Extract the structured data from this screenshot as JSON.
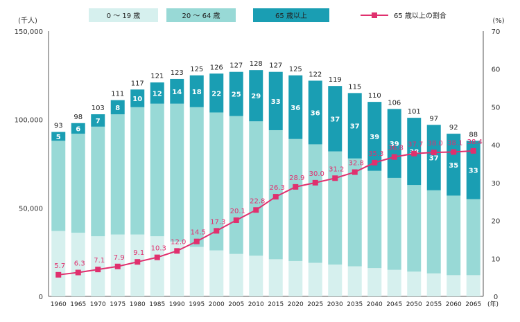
{
  "chart_data": {
    "type": "bar",
    "stacked": true,
    "categories": [
      "1960",
      "1965",
      "1970",
      "1975",
      "1980",
      "1985",
      "1990",
      "1995",
      "2000",
      "2005",
      "2010",
      "2015",
      "2020",
      "2025",
      "2030",
      "2035",
      "2040",
      "2045",
      "2050",
      "2055",
      "2060",
      "2065"
    ],
    "series": [
      {
        "name": "0 〜 19 歳",
        "color": "#d6f0ee",
        "values": [
          37,
          36,
          34,
          35,
          35,
          34,
          31,
          28,
          26,
          24,
          23,
          21,
          20,
          19,
          18,
          17,
          16,
          15,
          14,
          13,
          12,
          12
        ]
      },
      {
        "name": "20 〜 64 歳",
        "color": "#98d9d6",
        "values": [
          51,
          56,
          62,
          68,
          72,
          75,
          78,
          79,
          78,
          78,
          76,
          73,
          69,
          67,
          64,
          61,
          55,
          52,
          49,
          47,
          45,
          43
        ]
      },
      {
        "name": "65 歳以上",
        "color": "#1a9eb3",
        "values": [
          5,
          6,
          7,
          8,
          10,
          12,
          14,
          18,
          22,
          25,
          29,
          33,
          36,
          36,
          37,
          37,
          39,
          39,
          38,
          37,
          35,
          33
        ]
      }
    ],
    "totals": [
      93,
      98,
      103,
      111,
      117,
      121,
      123,
      125,
      126,
      127,
      128,
      127,
      125,
      122,
      119,
      115,
      110,
      106,
      101,
      97,
      92,
      88
    ],
    "line_series": {
      "name": "65 歳以上の割合",
      "color": "#e0306e",
      "values": [
        5.7,
        6.3,
        7.1,
        7.9,
        9.1,
        10.3,
        12.0,
        14.5,
        17.3,
        20.1,
        22.8,
        26.3,
        28.9,
        30.0,
        31.2,
        32.8,
        35.3,
        36.8,
        37.7,
        38.0,
        38.1,
        38.4
      ],
      "labels": [
        "5.7",
        "6.3",
        "7.1",
        "7.9",
        "9.1",
        "10.3",
        "12.0",
        "14.5",
        "17.3",
        "20.1",
        "22.8",
        "26.3",
        "28.9",
        "30.0",
        "31.2",
        "32.8",
        "35.3",
        "36.8",
        "37.7",
        "38.0",
        "38.1",
        "38.4"
      ]
    },
    "y_left": {
      "label": "(千人)",
      "ticks": [
        "150,000",
        "100,000",
        "50,000",
        "0"
      ],
      "range": [
        0,
        150000
      ]
    },
    "y_right": {
      "label": "(%)",
      "ticks": [
        "70",
        "60",
        "50",
        "40",
        "30",
        "20",
        "10",
        "0"
      ],
      "range": [
        0,
        70
      ]
    },
    "x_unit": "(年)",
    "legend_position": "top"
  }
}
